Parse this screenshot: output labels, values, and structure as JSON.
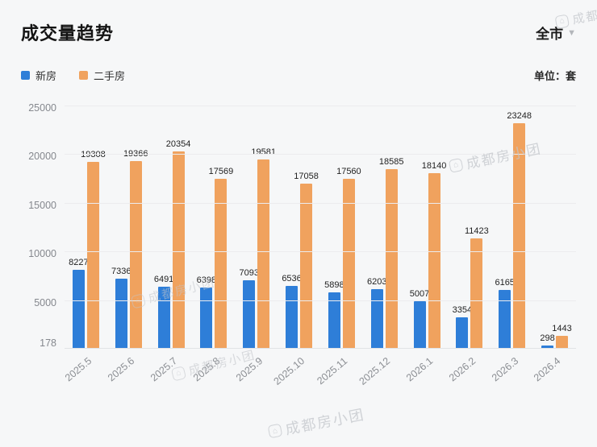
{
  "header": {
    "title": "成交量趋势",
    "region_selector": "全市",
    "dropdown_glyph": "▼",
    "unit_label": "单位：套"
  },
  "legend": [
    {
      "label": "新房",
      "color": "#2e7ed8"
    },
    {
      "label": "二手房",
      "color": "#f0a25e"
    }
  ],
  "watermark": {
    "icon_glyph": "⌂",
    "brand": "成都房小团"
  },
  "chart_data": {
    "type": "bar",
    "title": "成交量趋势",
    "unit": "套",
    "categories": [
      "2025.5",
      "2025.6",
      "2025.7",
      "2025.8",
      "2025.9",
      "2025.10",
      "2025.11",
      "2025.12",
      "2026.1",
      "2026.2",
      "2026.3",
      "2026.4"
    ],
    "series": [
      {
        "name": "新房",
        "color": "#2e7ed8",
        "values": [
          8227,
          7336,
          6491,
          6398,
          7093,
          6536,
          5898,
          6203,
          5007,
          3354,
          6165,
          298
        ]
      },
      {
        "name": "二手房",
        "color": "#f0a25e",
        "values": [
          19308,
          19366,
          20354,
          17569,
          19581,
          17058,
          17560,
          18585,
          18140,
          11423,
          23248,
          1443
        ]
      }
    ],
    "y_ticks": [
      25000,
      20000,
      15000,
      10000,
      5000,
      178
    ],
    "y_min": 178,
    "y_max": 25000,
    "grid": true,
    "legend_position": "top-left"
  }
}
